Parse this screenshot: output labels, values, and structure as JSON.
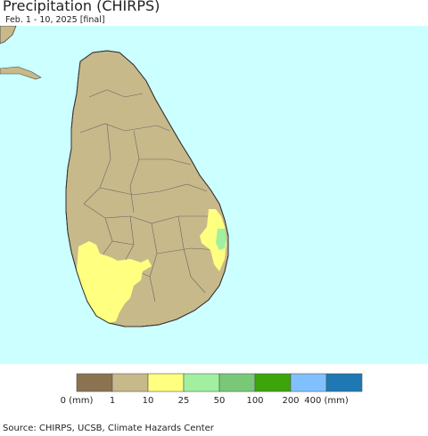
{
  "header": {
    "title": "Precipitation (CHIRPS)",
    "subtitle": "Feb. 1 - 10, 2025 [final]"
  },
  "map": {
    "region": "Sri Lanka",
    "colors": {
      "ocean": "#ccffff",
      "land_dry": "#c8b98a",
      "boundary": "#555555"
    },
    "highlighted_areas": [
      {
        "area": "southwest",
        "class": "10-25 mm",
        "color": "#ffff80"
      },
      {
        "area": "east coast",
        "class": "10-25 mm",
        "color": "#ffff80"
      },
      {
        "area": "east coast core",
        "class": "25-50 mm",
        "color": "#a0f0a0"
      }
    ]
  },
  "legend": {
    "colors": [
      "#8b7250",
      "#c8b98a",
      "#ffff80",
      "#a0f0a0",
      "#78c878",
      "#3ca50a",
      "#80c0ff",
      "#1e78b4"
    ],
    "labels": [
      "0 (mm)",
      "1",
      "10",
      "25",
      "50",
      "100",
      "200",
      "400 (mm)"
    ]
  },
  "footer": {
    "source": "Source: CHIRPS, UCSB, Climate Hazards Center"
  }
}
